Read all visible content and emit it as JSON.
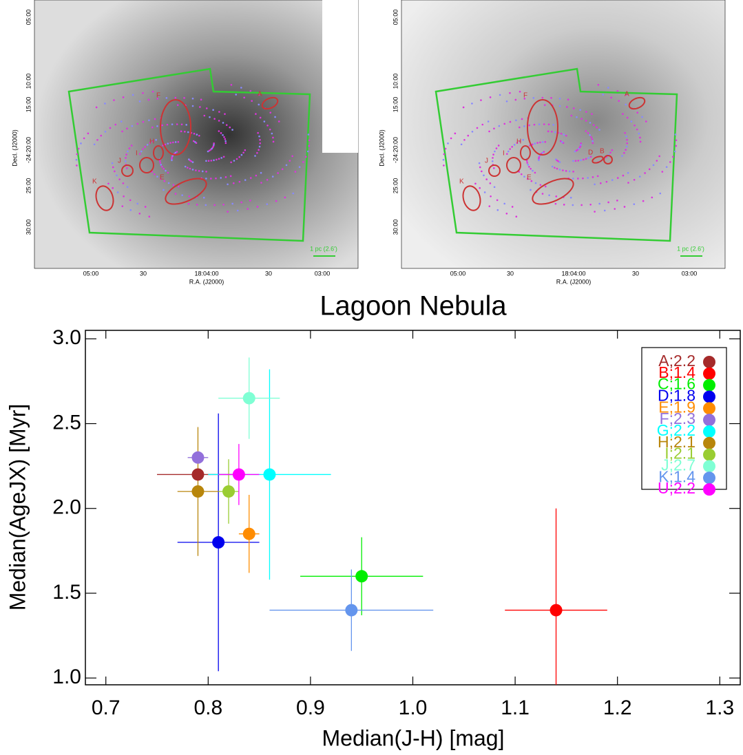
{
  "chart_data": {
    "type": "scatter",
    "title": "Lagoon Nebula",
    "xlabel": "Median(J-H) [mag]",
    "ylabel": "Median(AgeJX) [Myr]",
    "xlim": [
      0.68,
      1.32
    ],
    "ylim": [
      0.96,
      3.05
    ],
    "xticks": [
      0.7,
      0.8,
      0.9,
      {
        "value": 1.0,
        "label": "1.0"
      },
      1.1,
      1.2,
      1.3
    ],
    "yticks": [
      {
        "value": 1.0,
        "label": "1.0"
      },
      1.5,
      {
        "value": 2.0,
        "label": "2.0"
      },
      2.5,
      {
        "value": 3.0,
        "label": "3.0"
      }
    ],
    "legend": "upper right",
    "series": [
      {
        "name": "A;2.2",
        "color": "#a52a2a",
        "x": [
          0.79
        ],
        "values": [
          2.2
        ],
        "xerr": [
          0.04
        ],
        "yerr": [
          0.0
        ]
      },
      {
        "name": "B;1.4",
        "color": "#ff0000",
        "x": [
          1.14
        ],
        "values": [
          1.4
        ],
        "xerr": [
          0.05
        ],
        "yerr": [
          0.6
        ]
      },
      {
        "name": "C;1.6",
        "color": "#00ee00",
        "x": [
          0.95
        ],
        "values": [
          1.6
        ],
        "xerr": [
          0.06
        ],
        "yerr": [
          0.23
        ]
      },
      {
        "name": "D;1.8",
        "color": "#0000ee",
        "x": [
          0.81
        ],
        "values": [
          1.8
        ],
        "xerr": [
          0.04
        ],
        "yerr": [
          0.76
        ]
      },
      {
        "name": "E;1.9",
        "color": "#ff8c00",
        "x": [
          0.84
        ],
        "values": [
          1.85
        ],
        "xerr": [
          0.01
        ],
        "yerr": [
          0.23
        ]
      },
      {
        "name": "F;2.3",
        "color": "#9370db",
        "x": [
          0.79
        ],
        "values": [
          2.3
        ],
        "xerr": [
          0.01
        ],
        "yerr": [
          0.0
        ]
      },
      {
        "name": "G;2.2",
        "color": "#00ffff",
        "x": [
          0.86
        ],
        "values": [
          2.2
        ],
        "xerr": [
          0.06
        ],
        "yerr": [
          0.62
        ]
      },
      {
        "name": "H;2.1",
        "color": "#b8860b",
        "x": [
          0.79
        ],
        "values": [
          2.1
        ],
        "xerr": [
          0.02
        ],
        "yerr": [
          0.38
        ]
      },
      {
        "name": "I;2.1",
        "color": "#9acd32",
        "x": [
          0.82
        ],
        "values": [
          2.1
        ],
        "xerr": [
          0.01
        ],
        "yerr": [
          0.19
        ]
      },
      {
        "name": "J;2.7",
        "color": "#7fffd4",
        "x": [
          0.84
        ],
        "values": [
          2.65
        ],
        "xerr": [
          0.03
        ],
        "yerr": [
          0.24
        ]
      },
      {
        "name": "K;1.4",
        "color": "#6495ed",
        "x": [
          0.94
        ],
        "values": [
          1.4
        ],
        "xerr": [
          0.08
        ],
        "yerr": [
          0.24
        ]
      },
      {
        "name": "U;2.2",
        "color": "#ff00ff",
        "x": [
          0.83
        ],
        "values": [
          2.2
        ],
        "xerr": [
          0.02
        ],
        "yerr": [
          0.18
        ]
      }
    ]
  },
  "maps": [
    {
      "xlabel": "R.A. (J2000)",
      "ylabel": "Decl. (J2000)",
      "xtick_labels": [
        "05:00",
        "30",
        "18:04:00",
        "30",
        "03:00"
      ],
      "ytick_labels": [
        "05:00",
        "10:00",
        "15:00",
        "-24:20:00",
        "25:00",
        "30:00"
      ],
      "scale_label": "1 pc (2.6')",
      "regions": [
        "A",
        "F",
        "H",
        "I",
        "J",
        "K",
        "E"
      ]
    },
    {
      "xlabel": "R.A. (J2000)",
      "ylabel": "Decl. (J2000)",
      "xtick_labels": [
        "05:00",
        "30",
        "18:04:00",
        "30",
        "03:00"
      ],
      "ytick_labels": [
        "05:00",
        "10:00",
        "15:00",
        "-24:20:00",
        "25:00",
        "30:00"
      ],
      "scale_label": "1 pc (2.6')",
      "regions": [
        "A",
        "F",
        "H",
        "I",
        "J",
        "K",
        "E",
        "D",
        "B"
      ]
    }
  ]
}
